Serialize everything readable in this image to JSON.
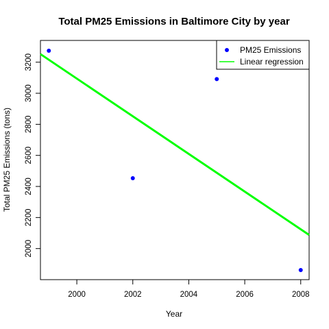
{
  "chart_data": {
    "type": "scatter",
    "title": "Total PM25 Emissions in Baltimore City by year",
    "xlabel": "Year",
    "ylabel": "Total PM25 Emissions (tons)",
    "xlim": [
      1998.7,
      2008.3
    ],
    "ylim": [
      1800,
      3340
    ],
    "x_ticks": [
      2000,
      2002,
      2004,
      2006,
      2008
    ],
    "y_ticks": [
      2000,
      2200,
      2400,
      2600,
      2800,
      3000,
      3200
    ],
    "series": [
      {
        "name": "PM25 Emissions",
        "kind": "points",
        "color": "#0000ff",
        "x": [
          1999,
          2002,
          2005,
          2008
        ],
        "y": [
          3274,
          2453,
          3091,
          1862
        ]
      },
      {
        "name": "Linear regression",
        "kind": "line",
        "color": "#00ff00",
        "x": [
          1998.7,
          2008.3
        ],
        "y": [
          3252,
          2088
        ]
      }
    ],
    "legend": {
      "position": "top-right"
    },
    "grid": false
  }
}
